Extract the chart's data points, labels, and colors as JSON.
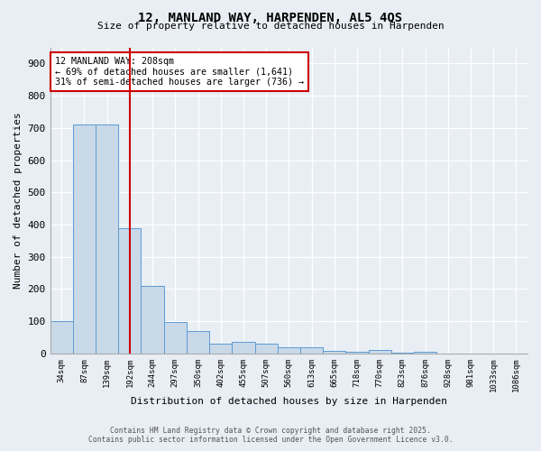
{
  "title1": "12, MANLAND WAY, HARPENDEN, AL5 4QS",
  "title2": "Size of property relative to detached houses in Harpenden",
  "xlabel": "Distribution of detached houses by size in Harpenden",
  "ylabel": "Number of detached properties",
  "categories": [
    "34sqm",
    "87sqm",
    "139sqm",
    "192sqm",
    "244sqm",
    "297sqm",
    "350sqm",
    "402sqm",
    "455sqm",
    "507sqm",
    "560sqm",
    "613sqm",
    "665sqm",
    "718sqm",
    "770sqm",
    "823sqm",
    "876sqm",
    "928sqm",
    "981sqm",
    "1033sqm",
    "1086sqm"
  ],
  "values": [
    100,
    710,
    710,
    390,
    210,
    97,
    70,
    30,
    35,
    30,
    20,
    20,
    8,
    5,
    10,
    3,
    5,
    1,
    0,
    0,
    0
  ],
  "bar_color": "#c9d9e8",
  "bar_edge_color": "#5b9bd5",
  "vline_x": 3,
  "vline_color": "#cc0000",
  "annotation_title": "12 MANLAND WAY: 208sqm",
  "annotation_line1": "← 69% of detached houses are smaller (1,641)",
  "annotation_line2": "31% of semi-detached houses are larger (736) →",
  "annotation_box_color": "#cc0000",
  "annotation_bg": "#ffffff",
  "ylim": [
    0,
    950
  ],
  "yticks": [
    0,
    100,
    200,
    300,
    400,
    500,
    600,
    700,
    800,
    900
  ],
  "footer1": "Contains HM Land Registry data © Crown copyright and database right 2025.",
  "footer2": "Contains public sector information licensed under the Open Government Licence v3.0.",
  "bg_color": "#e8eef4",
  "plot_bg_color": "#e8eef4"
}
